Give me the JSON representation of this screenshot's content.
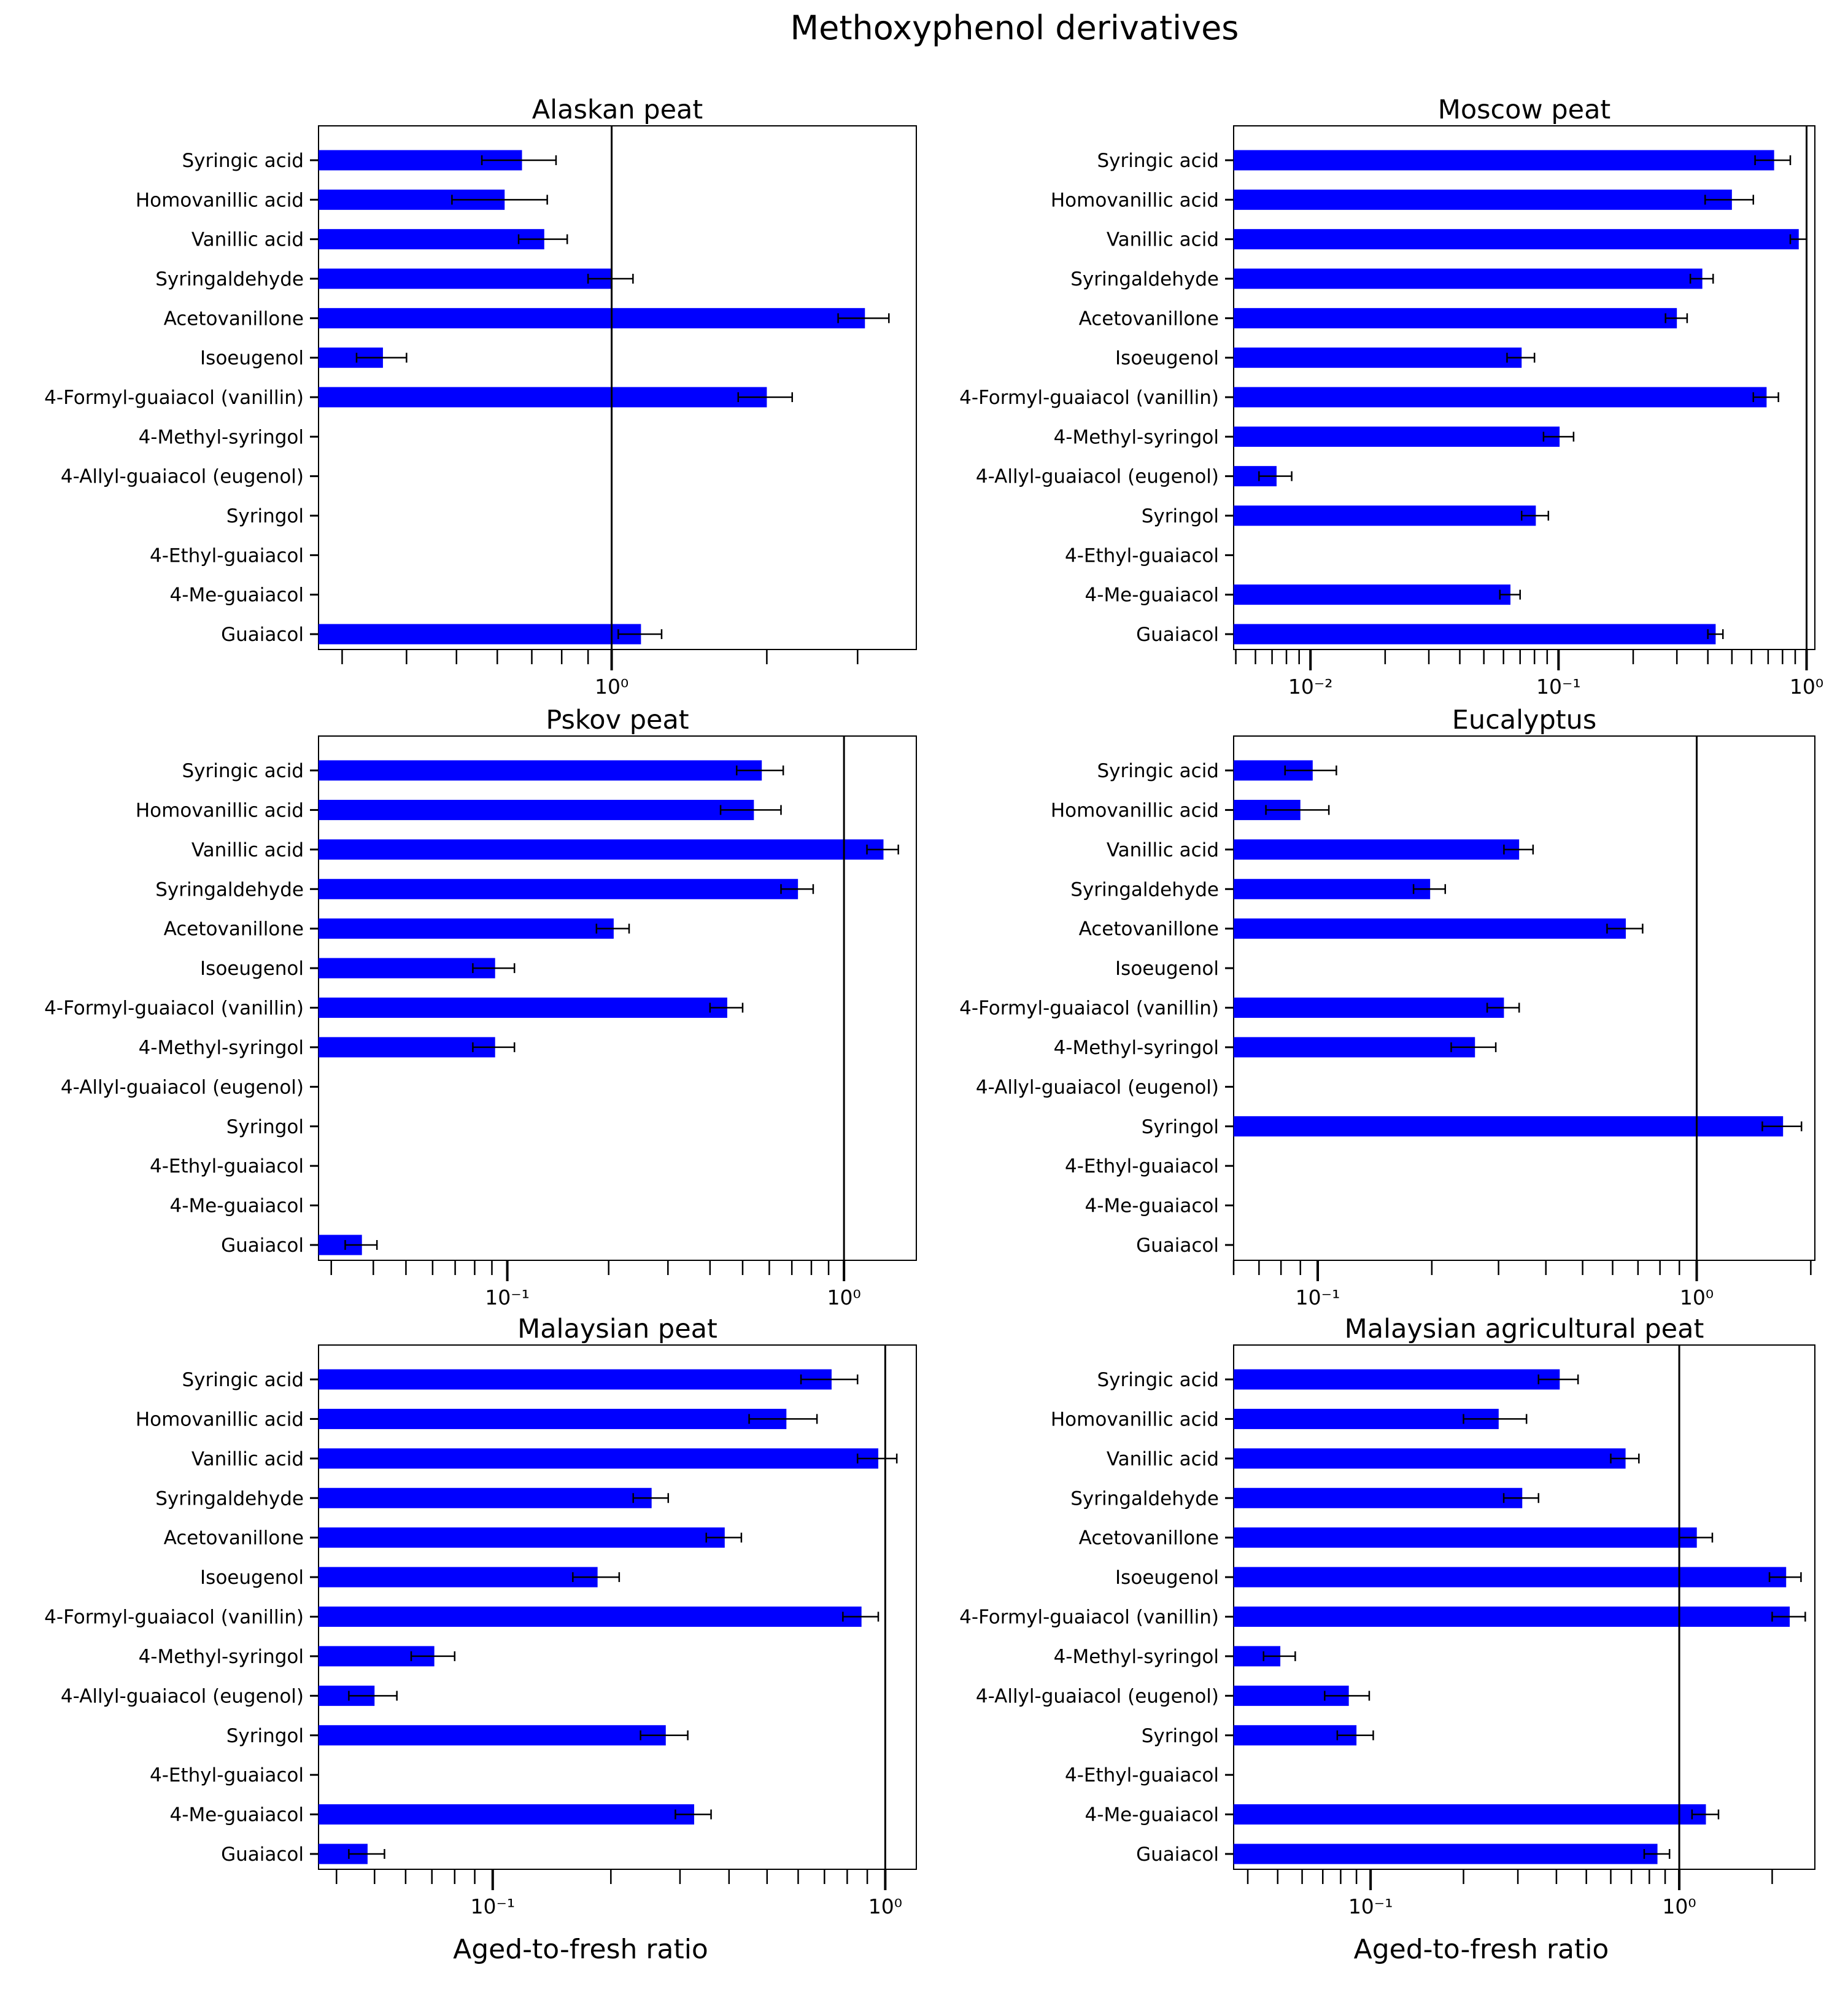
{
  "title": "Methoxyphenol  derivatives",
  "xlabel": "Aged-to-fresh ratio",
  "colors": {
    "bar": "#0000ff",
    "error": "#000000",
    "refline": "#000000"
  },
  "chart_data": [
    {
      "type": "bar",
      "orientation": "horizontal",
      "scale": "log",
      "title": "Alaskan peat",
      "xlim": [
        0.27,
        3.9
      ],
      "categories": [
        "Syringic acid",
        "Homovanillic acid",
        "Vanillic acid",
        "Syringaldehyde",
        "Acetovanillone",
        "Isoeugenol",
        "4-Formyl-guaiacol (vanillin)",
        "4-Methyl-syringol",
        "4-Allyl-guaiacol (eugenol)",
        "Syringol",
        "4-Ethyl-guaiacol",
        "4-Me-guaiacol",
        "Guaiacol"
      ],
      "values": [
        0.67,
        0.62,
        0.74,
        1.0,
        3.1,
        0.36,
        2.0,
        null,
        null,
        null,
        null,
        null,
        1.14
      ],
      "errors": [
        0.11,
        0.13,
        0.08,
        0.1,
        0.35,
        0.04,
        0.24,
        null,
        null,
        null,
        null,
        null,
        0.11
      ],
      "major_ticks": [
        {
          "value": 1,
          "label": "10⁰"
        }
      ],
      "reference_line": 1,
      "xlabel": ""
    },
    {
      "type": "bar",
      "orientation": "horizontal",
      "scale": "log",
      "title": "Moscow peat",
      "xlim": [
        0.0049,
        1.08
      ],
      "categories": [
        "Syringic acid",
        "Homovanillic acid",
        "Vanillic acid",
        "Syringaldehyde",
        "Acetovanillone",
        "Isoeugenol",
        "4-Formyl-guaiacol (vanillin)",
        "4-Methyl-syringol",
        "4-Allyl-guaiacol (eugenol)",
        "Syringol",
        "4-Ethyl-guaiacol",
        "4-Me-guaiacol",
        "Guaiacol"
      ],
      "values": [
        0.74,
        0.5,
        0.93,
        0.38,
        0.3,
        0.071,
        0.69,
        0.101,
        0.0073,
        0.081,
        null,
        0.064,
        0.43
      ],
      "errors": [
        0.12,
        0.11,
        0.07,
        0.04,
        0.03,
        0.009,
        0.08,
        0.014,
        0.0011,
        0.01,
        null,
        0.006,
        0.03
      ],
      "major_ticks": [
        {
          "value": 0.01,
          "label": "10⁻²"
        },
        {
          "value": 0.1,
          "label": "10⁻¹"
        },
        {
          "value": 1,
          "label": "10⁰"
        }
      ],
      "reference_line": 1,
      "xlabel": ""
    },
    {
      "type": "bar",
      "orientation": "horizontal",
      "scale": "log",
      "title": "Pskov peat",
      "xlim": [
        0.0275,
        1.64
      ],
      "categories": [
        "Syringic acid",
        "Homovanillic acid",
        "Vanillic acid",
        "Syringaldehyde",
        "Acetovanillone",
        "Isoeugenol",
        "4-Formyl-guaiacol (vanillin)",
        "4-Methyl-syringol",
        "4-Allyl-guaiacol (eugenol)",
        "Syringol",
        "4-Ethyl-guaiacol",
        "4-Me-guaiacol",
        "Guaiacol"
      ],
      "values": [
        0.57,
        0.54,
        1.31,
        0.73,
        0.207,
        0.092,
        0.45,
        0.092,
        null,
        null,
        null,
        null,
        0.037
      ],
      "errors": [
        0.09,
        0.11,
        0.14,
        0.08,
        0.023,
        0.013,
        0.05,
        0.013,
        null,
        null,
        null,
        null,
        0.004
      ],
      "major_ticks": [
        {
          "value": 0.1,
          "label": "10⁻¹"
        },
        {
          "value": 1,
          "label": "10⁰"
        }
      ],
      "reference_line": 1,
      "xlabel": ""
    },
    {
      "type": "bar",
      "orientation": "horizontal",
      "scale": "log",
      "title": "Eucalyptus",
      "xlim": [
        0.06,
        2.05
      ],
      "categories": [
        "Syringic acid",
        "Homovanillic acid",
        "Vanillic acid",
        "Syringaldehyde",
        "Acetovanillone",
        "Isoeugenol",
        "4-Formyl-guaiacol (vanillin)",
        "4-Methyl-syringol",
        "4-Allyl-guaiacol (eugenol)",
        "Syringol",
        "4-Ethyl-guaiacol",
        "4-Me-guaiacol",
        "Guaiacol"
      ],
      "values": [
        0.097,
        0.09,
        0.34,
        0.198,
        0.65,
        null,
        0.31,
        0.26,
        null,
        1.69,
        null,
        null,
        null
      ],
      "errors": [
        0.015,
        0.017,
        0.03,
        0.019,
        0.07,
        null,
        0.03,
        0.035,
        null,
        0.2,
        null,
        null,
        null
      ],
      "major_ticks": [
        {
          "value": 0.1,
          "label": "10⁻¹"
        },
        {
          "value": 1,
          "label": "10⁰"
        }
      ],
      "reference_line": 1,
      "xlabel": ""
    },
    {
      "type": "bar",
      "orientation": "horizontal",
      "scale": "log",
      "title": "Malaysian peat",
      "xlim": [
        0.036,
        1.2
      ],
      "categories": [
        "Syringic acid",
        "Homovanillic acid",
        "Vanillic acid",
        "Syringaldehyde",
        "Acetovanillone",
        "Isoeugenol",
        "4-Formyl-guaiacol (vanillin)",
        "4-Methyl-syringol",
        "4-Allyl-guaiacol (eugenol)",
        "Syringol",
        "4-Ethyl-guaiacol",
        "4-Me-guaiacol",
        "Guaiacol"
      ],
      "values": [
        0.73,
        0.56,
        0.96,
        0.254,
        0.39,
        0.185,
        0.87,
        0.071,
        0.05,
        0.276,
        null,
        0.326,
        0.048
      ],
      "errors": [
        0.12,
        0.11,
        0.11,
        0.026,
        0.04,
        0.025,
        0.09,
        0.009,
        0.007,
        0.038,
        null,
        0.034,
        0.005
      ],
      "major_ticks": [
        {
          "value": 0.1,
          "label": "10⁻¹"
        },
        {
          "value": 1,
          "label": "10⁰"
        }
      ],
      "reference_line": 1,
      "xlabel": "Aged-to-fresh ratio"
    },
    {
      "type": "bar",
      "orientation": "horizontal",
      "scale": "log",
      "title": "Malaysian agricultural peat",
      "xlim": [
        0.036,
        2.75
      ],
      "categories": [
        "Syringic acid",
        "Homovanillic acid",
        "Vanillic acid",
        "Syringaldehyde",
        "Acetovanillone",
        "Isoeugenol",
        "4-Formyl-guaiacol (vanillin)",
        "4-Methyl-syringol",
        "4-Allyl-guaiacol (eugenol)",
        "Syringol",
        "4-Ethyl-guaiacol",
        "4-Me-guaiacol",
        "Guaiacol"
      ],
      "values": [
        0.41,
        0.26,
        0.67,
        0.31,
        1.14,
        2.22,
        2.28,
        0.051,
        0.085,
        0.09,
        null,
        1.22,
        0.85
      ],
      "errors": [
        0.06,
        0.06,
        0.07,
        0.04,
        0.14,
        0.26,
        0.28,
        0.006,
        0.014,
        0.012,
        null,
        0.12,
        0.08
      ],
      "major_ticks": [
        {
          "value": 0.1,
          "label": "10⁻¹"
        },
        {
          "value": 1,
          "label": "10⁰"
        }
      ],
      "reference_line": 1,
      "xlabel": "Aged-to-fresh ratio"
    }
  ]
}
